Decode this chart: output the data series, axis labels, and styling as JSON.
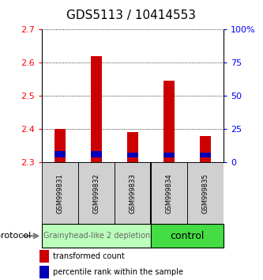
{
  "title": "GDS5113 / 10414553",
  "samples": [
    "GSM999831",
    "GSM999832",
    "GSM999833",
    "GSM999834",
    "GSM999835"
  ],
  "bar_bottom": 2.3,
  "transformed_counts": [
    2.4,
    2.62,
    2.39,
    2.545,
    2.38
  ],
  "percentile_bottoms": [
    2.315,
    2.315,
    2.315,
    2.315,
    2.315
  ],
  "percentile_tops": [
    2.335,
    2.335,
    2.33,
    2.33,
    2.33
  ],
  "ylim": [
    2.3,
    2.7
  ],
  "yticks_left": [
    2.3,
    2.4,
    2.5,
    2.6,
    2.7
  ],
  "yticks_right": [
    0,
    25,
    50,
    75,
    100
  ],
  "yticks_right_labels": [
    "0",
    "25",
    "50",
    "75",
    "100%"
  ],
  "bar_color_red": "#cc0000",
  "bar_color_blue": "#0000bb",
  "group1_label": "Grainyhead-like 2 depletion",
  "group2_label": "control",
  "group1_color": "#bbffbb",
  "group2_color": "#44dd44",
  "protocol_label": "protocol",
  "legend_red": "transformed count",
  "legend_blue": "percentile rank within the sample",
  "title_fontsize": 11,
  "tick_fontsize": 8,
  "sample_fontsize": 6,
  "group_fontsize1": 7,
  "group_fontsize2": 9,
  "legend_fontsize": 7
}
